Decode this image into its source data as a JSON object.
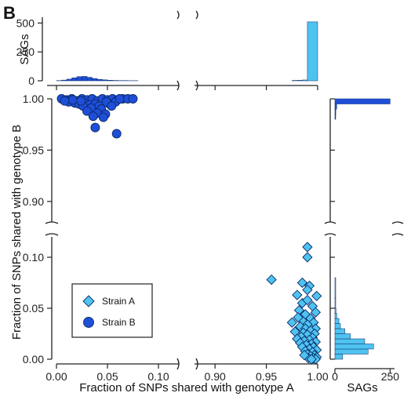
{
  "panel_label": "B",
  "colors": {
    "strain_a": "#4fc3f0",
    "strain_b": "#1f4fd8",
    "edge": "#0a2a6a",
    "axis": "#222222"
  },
  "chart_data": {
    "type": "scatter",
    "xlabel": "Fraction of SNPs shared with genotype A",
    "ylabel": "Fraction of SNPs shared with genotype B",
    "x_segments": [
      {
        "range": [
          0.0,
          0.12
        ],
        "ticks": [
          0.0,
          0.05,
          0.1
        ],
        "tick_labels": [
          "0.00",
          "0.05",
          "0.10"
        ]
      },
      {
        "range": [
          0.88,
          1.0
        ],
        "ticks": [
          0.9,
          0.95,
          1.0
        ],
        "tick_labels": [
          "0.90",
          "0.95",
          "1.00"
        ]
      }
    ],
    "y_segments": [
      {
        "range": [
          0.0,
          0.12
        ],
        "ticks": [
          0.0,
          0.05,
          0.1
        ],
        "tick_labels": [
          "0.00",
          "0.05",
          "0.10"
        ]
      },
      {
        "range": [
          0.88,
          1.0
        ],
        "ticks": [
          0.9,
          0.95,
          1.0
        ],
        "tick_labels": [
          "0.90",
          "0.95",
          "1.00"
        ]
      }
    ],
    "legend": {
      "placement": "bottom-left",
      "entries": [
        "Strain A",
        "Strain B"
      ]
    },
    "series": [
      {
        "name": "Strain A",
        "marker": "diamond",
        "points": [
          [
            0.955,
            0.078
          ],
          [
            0.99,
            0.11
          ],
          [
            0.99,
            0.1
          ],
          [
            0.985,
            0.075
          ],
          [
            0.992,
            0.072
          ],
          [
            0.98,
            0.063
          ],
          [
            0.99,
            0.068
          ],
          [
            0.985,
            0.055
          ],
          [
            0.995,
            0.052
          ],
          [
            0.99,
            0.058
          ],
          [
            0.982,
            0.048
          ],
          [
            0.998,
            0.046
          ],
          [
            0.988,
            0.044
          ],
          [
            0.993,
            0.04
          ],
          [
            0.985,
            0.038
          ],
          [
            0.975,
            0.036
          ],
          [
            0.996,
            0.036
          ],
          [
            0.99,
            0.034
          ],
          [
            0.983,
            0.032
          ],
          [
            0.998,
            0.03
          ],
          [
            0.988,
            0.03
          ],
          [
            0.993,
            0.028
          ],
          [
            0.978,
            0.027
          ],
          [
            0.986,
            0.026
          ],
          [
            0.997,
            0.025
          ],
          [
            0.99,
            0.024
          ],
          [
            0.984,
            0.022
          ],
          [
            0.995,
            0.021
          ],
          [
            0.98,
            0.02
          ],
          [
            0.992,
            0.019
          ],
          [
            0.987,
            0.018
          ],
          [
            0.998,
            0.017
          ],
          [
            0.983,
            0.016
          ],
          [
            0.994,
            0.015
          ],
          [
            0.989,
            0.014
          ],
          [
            0.996,
            0.012
          ],
          [
            0.985,
            0.012
          ],
          [
            0.992,
            0.01
          ],
          [
            0.999,
            0.009
          ],
          [
            0.988,
            0.008
          ],
          [
            0.995,
            0.007
          ],
          [
            0.99,
            0.005
          ],
          [
            0.997,
            0.004
          ],
          [
            0.993,
            0.003
          ],
          [
            0.999,
            0.002
          ],
          [
            0.996,
            0.001
          ],
          [
            0.991,
            0.001
          ],
          [
            0.998,
            0.0
          ],
          [
            0.994,
            0.0
          ],
          [
            0.987,
            0.004
          ],
          [
            0.981,
            0.041
          ],
          [
            0.999,
            0.062
          ]
        ]
      },
      {
        "name": "Strain B",
        "marker": "circle",
        "points": [
          [
            0.005,
            1.0
          ],
          [
            0.01,
            0.999
          ],
          [
            0.015,
            1.0
          ],
          [
            0.02,
            0.998
          ],
          [
            0.025,
            1.0
          ],
          [
            0.03,
            0.999
          ],
          [
            0.035,
            1.0
          ],
          [
            0.04,
            0.998
          ],
          [
            0.045,
            1.0
          ],
          [
            0.05,
            0.999
          ],
          [
            0.055,
            1.0
          ],
          [
            0.06,
            0.999
          ],
          [
            0.065,
            1.0
          ],
          [
            0.07,
            1.0
          ],
          [
            0.075,
            1.0
          ],
          [
            0.012,
            0.997
          ],
          [
            0.018,
            0.996
          ],
          [
            0.022,
            0.995
          ],
          [
            0.028,
            0.996
          ],
          [
            0.032,
            0.994
          ],
          [
            0.038,
            0.995
          ],
          [
            0.042,
            0.993
          ],
          [
            0.026,
            0.993
          ],
          [
            0.034,
            0.991
          ],
          [
            0.044,
            0.99
          ],
          [
            0.03,
            0.988
          ],
          [
            0.04,
            0.986
          ],
          [
            0.048,
            0.985
          ],
          [
            0.036,
            0.983
          ],
          [
            0.046,
            0.982
          ],
          [
            0.038,
            0.972
          ],
          [
            0.059,
            0.966
          ],
          [
            0.052,
            0.995
          ],
          [
            0.058,
            0.997
          ],
          [
            0.016,
            0.999
          ],
          [
            0.024,
            0.998
          ],
          [
            0.008,
            0.998
          ],
          [
            0.049,
            0.997
          ],
          [
            0.054,
            0.993
          ],
          [
            0.062,
            1.0
          ]
        ]
      }
    ],
    "marginal_top": {
      "type": "bar",
      "ylabel": "SAGs",
      "ylim": [
        0,
        550
      ],
      "yticks": [
        0,
        250,
        500
      ],
      "tick_labels": [
        "0",
        "250",
        "500"
      ],
      "bins_left": [
        [
          0.0,
          0.005,
          2
        ],
        [
          0.005,
          0.01,
          6
        ],
        [
          0.01,
          0.015,
          14
        ],
        [
          0.015,
          0.02,
          26
        ],
        [
          0.02,
          0.025,
          36
        ],
        [
          0.025,
          0.03,
          38
        ],
        [
          0.03,
          0.035,
          30
        ],
        [
          0.035,
          0.04,
          20
        ],
        [
          0.04,
          0.045,
          12
        ],
        [
          0.045,
          0.05,
          8
        ],
        [
          0.05,
          0.055,
          5
        ],
        [
          0.055,
          0.06,
          3
        ],
        [
          0.06,
          0.07,
          2
        ],
        [
          0.07,
          0.08,
          1
        ]
      ],
      "bins_right": [
        [
          0.975,
          0.98,
          3
        ],
        [
          0.98,
          0.985,
          5
        ],
        [
          0.985,
          0.99,
          7
        ],
        [
          0.99,
          1.0,
          510
        ]
      ]
    },
    "marginal_right": {
      "type": "bar",
      "xlabel": "SAGs",
      "xlim": [
        0,
        270
      ],
      "xticks": [
        0,
        250
      ],
      "tick_labels": [
        "0",
        "250"
      ],
      "bins_top": [
        [
          0.995,
          1.0,
          250
        ],
        [
          0.99,
          0.995,
          8
        ],
        [
          0.985,
          0.99,
          4
        ],
        [
          0.98,
          0.985,
          2
        ]
      ],
      "bins_bottom": [
        [
          0.0,
          0.005,
          35
        ],
        [
          0.005,
          0.01,
          150
        ],
        [
          0.01,
          0.015,
          175
        ],
        [
          0.015,
          0.02,
          135
        ],
        [
          0.02,
          0.025,
          70
        ],
        [
          0.025,
          0.03,
          45
        ],
        [
          0.03,
          0.035,
          25
        ],
        [
          0.035,
          0.04,
          18
        ],
        [
          0.04,
          0.045,
          8
        ],
        [
          0.045,
          0.05,
          5
        ],
        [
          0.05,
          0.06,
          3
        ],
        [
          0.06,
          0.08,
          2
        ]
      ]
    }
  }
}
